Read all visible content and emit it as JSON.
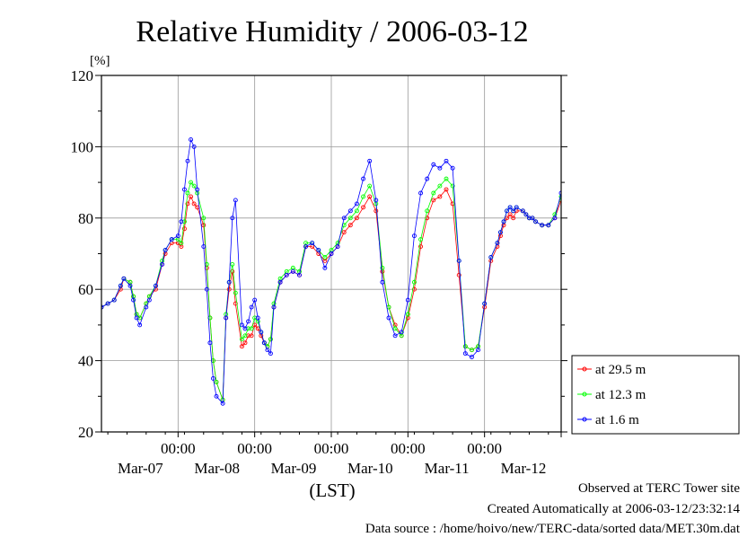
{
  "chart_data": {
    "type": "line",
    "title": "Relative Humidity / 2006-03-12",
    "ylabel": "[%]",
    "xlabel": "(LST)",
    "ylim": [
      20,
      120
    ],
    "xlim": [
      -20,
      124
    ],
    "yticks": [
      20,
      40,
      60,
      80,
      100,
      120
    ],
    "xticks": [
      {
        "x": 4,
        "time": "00:00",
        "date": "Mar-07"
      },
      {
        "x": 28,
        "time": "00:00",
        "date": "Mar-08"
      },
      {
        "x": 52,
        "time": "00:00",
        "date": "Mar-09"
      },
      {
        "x": 76,
        "time": "00:00",
        "date": "Mar-10"
      },
      {
        "x": 100,
        "time": "00:00",
        "date": "Mar-11"
      },
      {
        "x": 124,
        "time": "",
        "date": "Mar-12"
      }
    ],
    "x_unit": "hours from 2006-03-09 00:00 LST",
    "grid": true,
    "legend_position": "right-bottom",
    "series": [
      {
        "name": "at 29.5 m",
        "color": "#ff0000",
        "x": [
          -20,
          -18,
          -16,
          -14,
          -13,
          -11,
          -10,
          -9,
          -8,
          -6,
          -5,
          -3,
          -1,
          0,
          2,
          4,
          5,
          6,
          7,
          8,
          9,
          10,
          12,
          13,
          14,
          15,
          16,
          18,
          19,
          20,
          21,
          22,
          24,
          25,
          26,
          27,
          28,
          29,
          30,
          31,
          32,
          33,
          34,
          36,
          38,
          40,
          42,
          44,
          46,
          48,
          50,
          52,
          54,
          56,
          58,
          60,
          62,
          64,
          66,
          68,
          70,
          72,
          74,
          76,
          78,
          80,
          82,
          84,
          86,
          88,
          90,
          92,
          94,
          96,
          98,
          100,
          102,
          104,
          105,
          106,
          107,
          108,
          109,
          110,
          112,
          113,
          114,
          115,
          116,
          118,
          120,
          122,
          124
        ],
        "y": [
          55,
          56,
          57,
          60,
          63,
          62,
          58,
          53,
          52,
          56,
          58,
          60,
          67,
          70,
          73,
          73,
          72,
          77,
          84,
          86,
          84,
          83,
          78,
          66,
          52,
          40,
          34,
          29,
          52,
          60,
          65,
          56,
          44,
          45,
          47,
          47,
          50,
          49,
          47,
          45,
          44,
          46,
          55,
          62,
          64,
          65,
          64,
          72,
          72,
          70,
          68,
          70,
          72,
          76,
          78,
          80,
          83,
          86,
          82,
          65,
          55,
          50,
          47,
          52,
          60,
          72,
          80,
          85,
          86,
          88,
          84,
          64,
          44,
          43,
          44,
          55,
          68,
          72,
          75,
          78,
          80,
          81,
          80,
          82,
          82,
          81,
          80,
          80,
          79,
          78,
          78,
          80,
          85
        ]
      },
      {
        "name": "at 12.3 m",
        "color": "#00ff00",
        "x": [
          -20,
          -18,
          -16,
          -14,
          -13,
          -11,
          -10,
          -9,
          -8,
          -6,
          -5,
          -3,
          -1,
          0,
          2,
          4,
          5,
          6,
          7,
          8,
          9,
          10,
          12,
          13,
          14,
          15,
          16,
          18,
          19,
          20,
          21,
          22,
          24,
          25,
          26,
          27,
          28,
          29,
          30,
          31,
          32,
          33,
          34,
          36,
          38,
          40,
          42,
          44,
          46,
          48,
          50,
          52,
          54,
          56,
          58,
          60,
          62,
          64,
          66,
          68,
          70,
          72,
          74,
          76,
          78,
          80,
          82,
          84,
          86,
          88,
          90,
          92,
          94,
          96,
          98,
          100,
          102,
          104,
          105,
          106,
          107,
          108,
          109,
          110,
          112,
          113,
          114,
          115,
          116,
          118,
          120,
          122,
          124
        ],
        "y": [
          55,
          56,
          57,
          61,
          63,
          62,
          58,
          53,
          52,
          56,
          58,
          61,
          68,
          71,
          74,
          74,
          73,
          79,
          87,
          90,
          89,
          87,
          80,
          67,
          52,
          40,
          34,
          29,
          53,
          62,
          67,
          59,
          46,
          47,
          49,
          49,
          52,
          51,
          48,
          45,
          44,
          46,
          56,
          63,
          65,
          66,
          65,
          73,
          73,
          71,
          69,
          71,
          73,
          78,
          80,
          82,
          86,
          89,
          84,
          66,
          55,
          49,
          47,
          53,
          62,
          74,
          82,
          87,
          89,
          91,
          89,
          68,
          44,
          43,
          44,
          56,
          69,
          73,
          76,
          79,
          82,
          83,
          82,
          83,
          82,
          81,
          80,
          80,
          79,
          78,
          78,
          81,
          86
        ]
      },
      {
        "name": "at 1.6 m",
        "color": "#0000ff",
        "x": [
          -20,
          -18,
          -16,
          -14,
          -13,
          -11,
          -10,
          -9,
          -8,
          -6,
          -5,
          -3,
          -1,
          0,
          2,
          4,
          5,
          6,
          7,
          8,
          9,
          10,
          12,
          13,
          14,
          15,
          16,
          18,
          19,
          20,
          21,
          22,
          24,
          25,
          26,
          27,
          28,
          29,
          30,
          31,
          32,
          33,
          34,
          36,
          38,
          40,
          42,
          44,
          46,
          48,
          50,
          52,
          54,
          56,
          58,
          60,
          62,
          64,
          66,
          68,
          70,
          72,
          74,
          76,
          78,
          80,
          82,
          84,
          86,
          88,
          90,
          92,
          94,
          96,
          98,
          100,
          102,
          104,
          105,
          106,
          107,
          108,
          109,
          110,
          112,
          113,
          114,
          115,
          116,
          118,
          120,
          122,
          124
        ],
        "y": [
          55,
          56,
          57,
          61,
          63,
          61,
          57,
          52,
          50,
          55,
          57,
          61,
          67,
          71,
          74,
          75,
          79,
          88,
          96,
          102,
          100,
          88,
          72,
          60,
          45,
          35,
          30,
          28,
          52,
          62,
          80,
          85,
          50,
          49,
          51,
          55,
          57,
          52,
          48,
          45,
          43,
          42,
          55,
          62,
          64,
          65,
          64,
          72,
          73,
          71,
          66,
          70,
          72,
          80,
          82,
          84,
          91,
          96,
          85,
          62,
          52,
          47,
          48,
          57,
          75,
          87,
          91,
          95,
          94,
          96,
          94,
          68,
          42,
          41,
          43,
          56,
          69,
          73,
          76,
          79,
          82,
          83,
          82,
          83,
          82,
          81,
          80,
          80,
          79,
          78,
          78,
          80,
          87
        ]
      }
    ]
  },
  "footer": {
    "line1": "Observed at TERC Tower site",
    "line2": "Created Automatically at 2006-03-12/23:32:14",
    "line3": "Data source : /home/hoivo/new/TERC-data/sorted  data/MET.30m.dat"
  }
}
